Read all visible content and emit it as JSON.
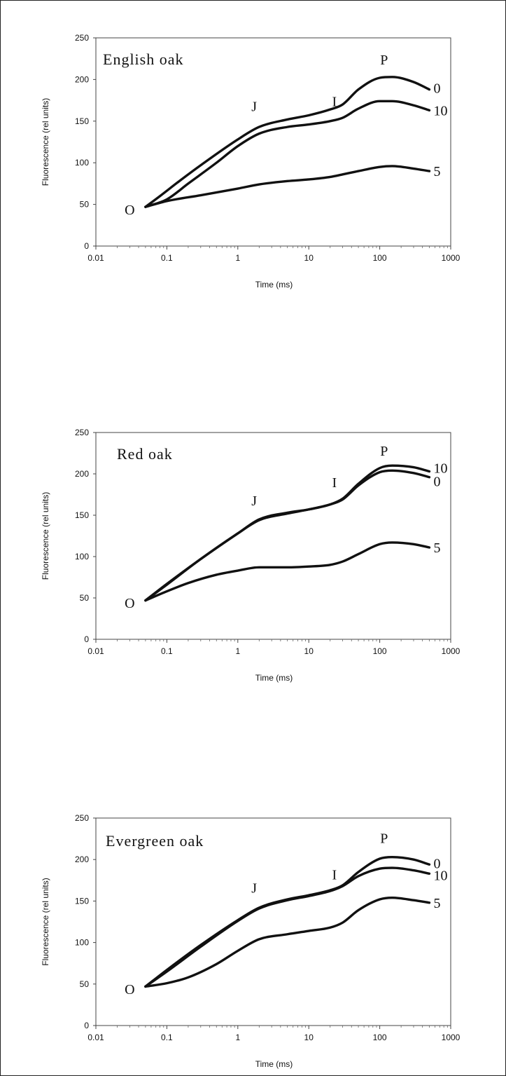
{
  "chart_data": [
    {
      "type": "line",
      "title": "English oak",
      "xlabel": "Time (ms)",
      "ylabel": "Fluorescence (rel units)",
      "xscale": "log",
      "xlim": [
        0.01,
        1000
      ],
      "ylim": [
        0,
        250
      ],
      "xticks": [
        "0.01",
        "0.1",
        "1",
        "10",
        "100",
        "1000"
      ],
      "yticks": [
        "0",
        "50",
        "100",
        "150",
        "200",
        "250"
      ],
      "point_labels": [
        {
          "text": "O",
          "x": 0.03,
          "y": 38
        },
        {
          "text": "J",
          "x": 1.7,
          "y": 162
        },
        {
          "text": "I",
          "x": 23,
          "y": 168
        },
        {
          "text": "P",
          "x": 115,
          "y": 218
        }
      ],
      "series": [
        {
          "name": "0",
          "x": [
            0.05,
            0.08,
            0.15,
            0.3,
            1,
            2,
            5,
            10,
            20,
            30,
            50,
            100,
            150,
            300,
            500
          ],
          "y": [
            47,
            60,
            78,
            97,
            128,
            143,
            152,
            157,
            164,
            170,
            188,
            202,
            203,
            197,
            188
          ]
        },
        {
          "name": "10",
          "x": [
            0.05,
            0.1,
            0.2,
            0.5,
            1,
            2,
            5,
            10,
            20,
            30,
            50,
            100,
            150,
            300,
            500
          ],
          "y": [
            47,
            56,
            75,
            100,
            120,
            135,
            143,
            146,
            150,
            154,
            165,
            174,
            174,
            169,
            163
          ]
        },
        {
          "name": "5",
          "x": [
            0.05,
            0.1,
            0.3,
            1,
            2,
            5,
            10,
            20,
            30,
            50,
            100,
            150,
            300,
            500
          ],
          "y": [
            47,
            54,
            61,
            69,
            74,
            78,
            80,
            83,
            86,
            90,
            95,
            96,
            93,
            90
          ]
        }
      ]
    },
    {
      "type": "line",
      "title": "Red oak",
      "xlabel": "Time (ms)",
      "ylabel": "Fluorescence (rel units)",
      "xscale": "log",
      "xlim": [
        0.01,
        1000
      ],
      "ylim": [
        0,
        250
      ],
      "xticks": [
        "0.01",
        "0.1",
        "1",
        "10",
        "100",
        "1000"
      ],
      "yticks": [
        "0",
        "50",
        "100",
        "150",
        "200",
        "250"
      ],
      "point_labels": [
        {
          "text": "O",
          "x": 0.03,
          "y": 38
        },
        {
          "text": "J",
          "x": 1.7,
          "y": 162
        },
        {
          "text": "I",
          "x": 23,
          "y": 184
        },
        {
          "text": "P",
          "x": 115,
          "y": 222
        }
      ],
      "series": [
        {
          "name": "10",
          "x": [
            0.05,
            0.1,
            0.3,
            1,
            2,
            5,
            10,
            20,
            30,
            50,
            100,
            150,
            300,
            500
          ],
          "y": [
            47,
            67,
            97,
            128,
            145,
            153,
            157,
            163,
            170,
            188,
            207,
            210,
            208,
            203
          ]
        },
        {
          "name": "0",
          "x": [
            0.05,
            0.1,
            0.3,
            1,
            2,
            5,
            10,
            20,
            30,
            50,
            100,
            150,
            300,
            500
          ],
          "y": [
            47,
            66,
            97,
            128,
            144,
            152,
            157,
            163,
            169,
            186,
            202,
            204,
            201,
            196
          ]
        },
        {
          "name": "5",
          "x": [
            0.05,
            0.1,
            0.2,
            0.5,
            1,
            2,
            5,
            10,
            20,
            30,
            50,
            100,
            150,
            300,
            500
          ],
          "y": [
            47,
            58,
            68,
            78,
            83,
            87,
            87,
            88,
            90,
            94,
            103,
            115,
            117,
            115,
            111
          ]
        }
      ]
    },
    {
      "type": "line",
      "title": "Evergreen oak",
      "xlabel": "Time (ms)",
      "ylabel": "Fluorescence (rel units)",
      "xscale": "log",
      "xlim": [
        0.01,
        1000
      ],
      "ylim": [
        0,
        250
      ],
      "xticks": [
        "0.01",
        "0.1",
        "1",
        "10",
        "100",
        "1000"
      ],
      "yticks": [
        "0",
        "50",
        "100",
        "150",
        "200",
        "250"
      ],
      "point_labels": [
        {
          "text": "O",
          "x": 0.03,
          "y": 38
        },
        {
          "text": "J",
          "x": 1.7,
          "y": 160
        },
        {
          "text": "I",
          "x": 23,
          "y": 176
        },
        {
          "text": "P",
          "x": 115,
          "y": 220
        }
      ],
      "series": [
        {
          "name": "0",
          "x": [
            0.05,
            0.1,
            0.3,
            1,
            2,
            5,
            10,
            20,
            30,
            50,
            100,
            150,
            300,
            500
          ],
          "y": [
            47,
            67,
            97,
            127,
            142,
            152,
            157,
            163,
            169,
            185,
            201,
            203,
            200,
            194
          ]
        },
        {
          "name": "10",
          "x": [
            0.05,
            0.1,
            0.3,
            1,
            2,
            5,
            10,
            20,
            30,
            50,
            100,
            150,
            300,
            500
          ],
          "y": [
            47,
            65,
            95,
            126,
            141,
            151,
            156,
            162,
            168,
            180,
            189,
            190,
            187,
            183
          ]
        },
        {
          "name": "5",
          "x": [
            0.05,
            0.1,
            0.2,
            0.5,
            1,
            2,
            5,
            10,
            20,
            30,
            50,
            100,
            150,
            300,
            500
          ],
          "y": [
            47,
            51,
            58,
            74,
            90,
            104,
            110,
            114,
            118,
            124,
            139,
            152,
            154,
            151,
            148
          ]
        }
      ]
    }
  ]
}
